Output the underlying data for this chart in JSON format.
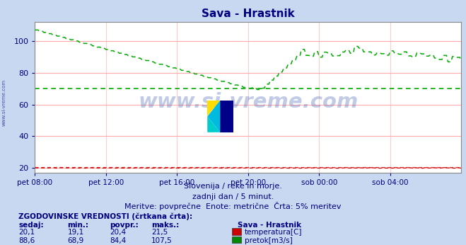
{
  "title": "Sava - Hrastnik",
  "title_color": "#000080",
  "bg_color": "#c8d8f0",
  "plot_bg_color": "#ffffff",
  "xlabel_ticks": [
    "pet 08:00",
    "pet 12:00",
    "pet 16:00",
    "pet 20:00",
    "sob 00:00",
    "sob 04:00"
  ],
  "yticks": [
    20,
    40,
    60,
    80,
    100
  ],
  "ylim": [
    17,
    112
  ],
  "xlim": [
    0,
    288
  ],
  "grid_color_h": "#ffaaaa",
  "grid_color_v": "#ffcccc",
  "watermark_text": "www.si-vreme.com",
  "subtitle1": "Slovenija / reke in morje.",
  "subtitle2": "zadnji dan / 5 minut.",
  "subtitle3": "Meritve: povprečne  Enote: metrične  Črta: 5% meritev",
  "legend_title": "ZGODOVINSKE VREDNOSTI (črtkana črta):",
  "legend_headers": [
    "sedaj:",
    "min.:",
    "povpr.:",
    "maks.:"
  ],
  "legend_station": "Sava - Hrastnik",
  "legend_rows": [
    {
      "values": [
        "20,1",
        "19,1",
        "20,4",
        "21,5"
      ],
      "color": "#cc0000",
      "label": "temperatura[C]"
    },
    {
      "values": [
        "88,6",
        "68,9",
        "84,4",
        "107,5"
      ],
      "color": "#008800",
      "label": "pretok[m3/s]"
    }
  ],
  "temp_color": "#cc0000",
  "flow_color": "#00aa00",
  "avg_temp": 20.4,
  "avg_flow": 70.0,
  "tick_positions": [
    0,
    48,
    96,
    144,
    192,
    240
  ],
  "side_label": "www.si-vreme.com"
}
